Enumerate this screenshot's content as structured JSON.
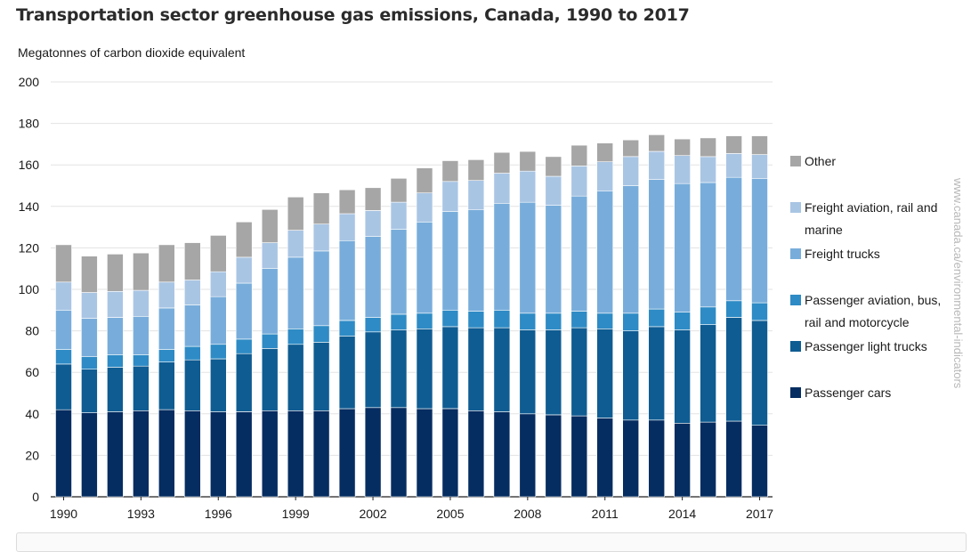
{
  "chart_data": {
    "type": "bar",
    "stacked": true,
    "title": "Transportation sector greenhouse gas emissions, Canada, 1990 to 2017",
    "ylabel": "Megatonnes of carbon dioxide equivalent",
    "xlabel": "",
    "ylim": [
      0,
      200
    ],
    "yticks": [
      "0",
      "20",
      "40",
      "60",
      "80",
      "100",
      "120",
      "140",
      "160",
      "180",
      "200"
    ],
    "xtick_labels": [
      "1990",
      "1993",
      "1996",
      "1999",
      "2002",
      "2005",
      "2008",
      "2011",
      "2014",
      "2017"
    ],
    "grid": true,
    "legend_position": "right",
    "watermark": "www.canada.ca/environmental-indicators",
    "categories": [
      "1990",
      "1991",
      "1992",
      "1993",
      "1994",
      "1995",
      "1996",
      "1997",
      "1998",
      "1999",
      "2000",
      "2001",
      "2002",
      "2003",
      "2004",
      "2005",
      "2006",
      "2007",
      "2008",
      "2009",
      "2010",
      "2011",
      "2012",
      "2013",
      "2014",
      "2015",
      "2016",
      "2017"
    ],
    "series": [
      {
        "name": "Passenger cars",
        "color": "#062d61",
        "values": [
          42,
          40.5,
          41,
          41.5,
          42,
          41.5,
          41,
          41,
          41.5,
          41.5,
          41.5,
          42.5,
          43,
          43,
          42.5,
          42.5,
          41.5,
          41,
          40,
          39.5,
          39,
          38,
          37,
          37,
          35.5,
          36,
          36.5,
          34.5
        ]
      },
      {
        "name": "Passenger light trucks",
        "color": "#0f5c92",
        "values": [
          22,
          21,
          21.5,
          21.5,
          23,
          24.5,
          25.5,
          28,
          30,
          32,
          33,
          35,
          36.5,
          37.5,
          38.5,
          39.5,
          40,
          40.5,
          40.5,
          41,
          42.5,
          43,
          43,
          45,
          45,
          47,
          50,
          50.5
        ]
      },
      {
        "name": "Passenger aviation, bus, rail and motorcycle",
        "color": "#2e8bc5",
        "values": [
          7,
          6,
          6,
          5.5,
          6,
          6.5,
          7,
          7,
          7,
          7.5,
          8,
          7.5,
          7,
          7.5,
          7.5,
          8,
          8,
          8.5,
          8,
          8,
          8,
          7.5,
          8.5,
          8.5,
          8.5,
          8.5,
          8,
          8.5
        ]
      },
      {
        "name": "Freight trucks",
        "color": "#78addb",
        "values": [
          19,
          18.5,
          18,
          18.5,
          20,
          20,
          23,
          27,
          31.5,
          34.5,
          36,
          38.5,
          39,
          41,
          44,
          47.5,
          49,
          51.5,
          53.5,
          52,
          55.5,
          59,
          61.5,
          62.5,
          62,
          60,
          59.5,
          60
        ]
      },
      {
        "name": "Freight aviation, rail and marine",
        "color": "#a9c5e4",
        "values": [
          13.5,
          12.5,
          12.5,
          12.5,
          12.5,
          12,
          12,
          12.5,
          12.5,
          13,
          13,
          13,
          12.5,
          13,
          14,
          14.5,
          14,
          14.5,
          15,
          14,
          14.5,
          14,
          14,
          13.5,
          13.5,
          12.5,
          11.5,
          11.5
        ]
      },
      {
        "name": "Other",
        "color": "#a6a6a6",
        "values": [
          18,
          17.5,
          18,
          18,
          18,
          18,
          17.5,
          17,
          16,
          16,
          15,
          11.5,
          11,
          11.5,
          12,
          10,
          10,
          10,
          9.5,
          9.5,
          10,
          9,
          8,
          8,
          8,
          9,
          8.5,
          9
        ]
      }
    ]
  }
}
